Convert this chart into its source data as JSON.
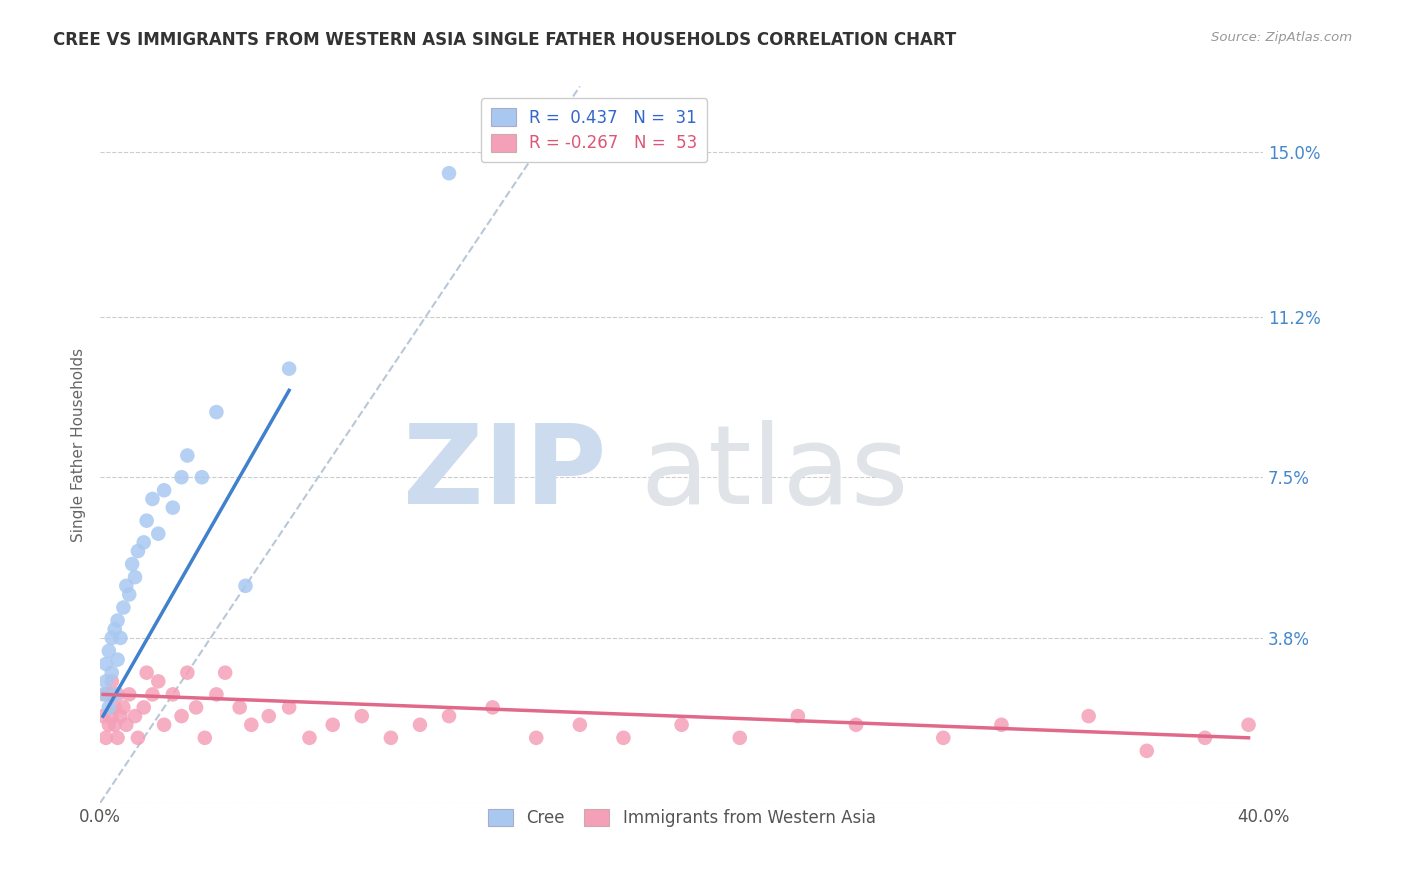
{
  "title": "CREE VS IMMIGRANTS FROM WESTERN ASIA SINGLE FATHER HOUSEHOLDS CORRELATION CHART",
  "source": "Source: ZipAtlas.com",
  "ylabel": "Single Father Households",
  "ytick_labels": [
    "",
    "3.8%",
    "7.5%",
    "11.2%",
    "15.0%"
  ],
  "ytick_values": [
    0.0,
    0.038,
    0.075,
    0.112,
    0.15
  ],
  "xlim": [
    0.0,
    0.4
  ],
  "ylim": [
    0.0,
    0.165
  ],
  "color_cree": "#a8c8f0",
  "color_western_asia": "#f4a0b8",
  "color_cree_line": "#4080cc",
  "color_western_asia_line": "#e06888",
  "color_diagonal": "#b8c8d8",
  "background_color": "#ffffff",
  "cree_x": [
    0.001,
    0.002,
    0.002,
    0.003,
    0.003,
    0.004,
    0.004,
    0.005,
    0.005,
    0.006,
    0.006,
    0.007,
    0.008,
    0.009,
    0.01,
    0.011,
    0.012,
    0.013,
    0.015,
    0.016,
    0.018,
    0.02,
    0.022,
    0.025,
    0.028,
    0.03,
    0.035,
    0.04,
    0.05,
    0.065,
    0.12
  ],
  "cree_y": [
    0.025,
    0.028,
    0.032,
    0.022,
    0.035,
    0.03,
    0.038,
    0.025,
    0.04,
    0.033,
    0.042,
    0.038,
    0.045,
    0.05,
    0.048,
    0.055,
    0.052,
    0.058,
    0.06,
    0.065,
    0.07,
    0.062,
    0.072,
    0.068,
    0.075,
    0.08,
    0.075,
    0.09,
    0.05,
    0.1,
    0.145
  ],
  "western_asia_x": [
    0.001,
    0.002,
    0.002,
    0.003,
    0.003,
    0.004,
    0.004,
    0.005,
    0.005,
    0.006,
    0.006,
    0.007,
    0.008,
    0.009,
    0.01,
    0.012,
    0.013,
    0.015,
    0.016,
    0.018,
    0.02,
    0.022,
    0.025,
    0.028,
    0.03,
    0.033,
    0.036,
    0.04,
    0.043,
    0.048,
    0.052,
    0.058,
    0.065,
    0.072,
    0.08,
    0.09,
    0.1,
    0.11,
    0.12,
    0.135,
    0.15,
    0.165,
    0.18,
    0.2,
    0.22,
    0.24,
    0.26,
    0.29,
    0.31,
    0.34,
    0.36,
    0.38,
    0.395
  ],
  "western_asia_y": [
    0.02,
    0.025,
    0.015,
    0.018,
    0.025,
    0.02,
    0.028,
    0.022,
    0.018,
    0.025,
    0.015,
    0.02,
    0.022,
    0.018,
    0.025,
    0.02,
    0.015,
    0.022,
    0.03,
    0.025,
    0.028,
    0.018,
    0.025,
    0.02,
    0.03,
    0.022,
    0.015,
    0.025,
    0.03,
    0.022,
    0.018,
    0.02,
    0.022,
    0.015,
    0.018,
    0.02,
    0.015,
    0.018,
    0.02,
    0.022,
    0.015,
    0.018,
    0.015,
    0.018,
    0.015,
    0.02,
    0.018,
    0.015,
    0.018,
    0.02,
    0.012,
    0.015,
    0.018
  ],
  "cree_line_x": [
    0.001,
    0.065
  ],
  "cree_line_y": [
    0.02,
    0.095
  ],
  "wa_line_x": [
    0.001,
    0.395
  ],
  "wa_line_y": [
    0.025,
    0.015
  ],
  "diag_line_x": [
    0.0,
    0.165
  ],
  "diag_line_y": [
    0.0,
    0.165
  ]
}
